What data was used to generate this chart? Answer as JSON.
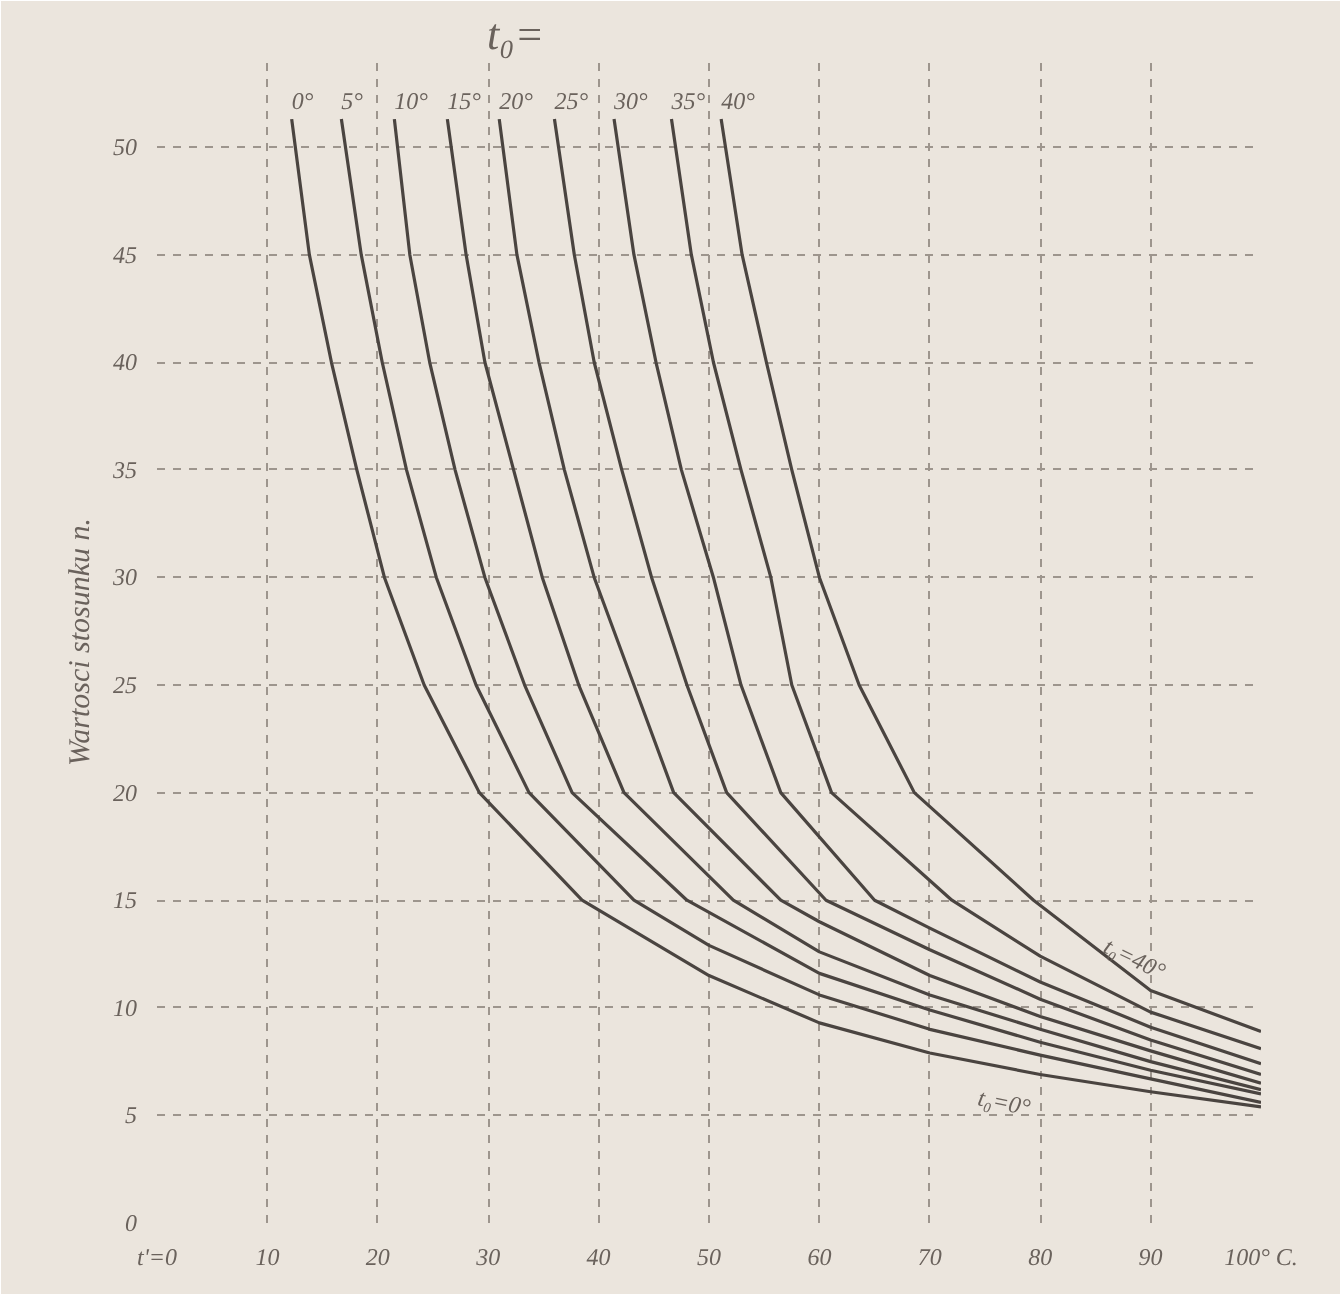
{
  "chart_data": {
    "type": "line",
    "title": "t₀=",
    "ylabel": "Wartosci stosunku n.",
    "xlim": [
      0,
      100
    ],
    "ylim": [
      0,
      54
    ],
    "xticks": [
      {
        "value": 0,
        "label": "t'=0"
      },
      10,
      20,
      30,
      40,
      50,
      60,
      70,
      80,
      90,
      {
        "value": 100,
        "label": "100° C."
      }
    ],
    "yticks": [
      0,
      5,
      10,
      15,
      20,
      25,
      30,
      35,
      40,
      45,
      50
    ],
    "grid": true,
    "legend": false,
    "annotations": [
      "t₀=40°",
      "t₀=0°"
    ],
    "series": [
      {
        "name": "0°",
        "color": "#4a4440",
        "x": [
          12.2,
          13.8,
          15.8,
          18.1,
          20.6,
          24.2,
          29.2,
          38.5,
          50,
          60,
          70,
          80,
          90,
          100
        ],
        "values": [
          51.3,
          45,
          40,
          35,
          30,
          25,
          20,
          15,
          11.5,
          9.3,
          7.9,
          6.9,
          6.1,
          5.4
        ]
      },
      {
        "name": "5°",
        "color": "#4a4440",
        "x": [
          16.7,
          18.5,
          20.4,
          22.6,
          25.3,
          28.9,
          33.7,
          43.2,
          50,
          60,
          70,
          80,
          90,
          100
        ],
        "values": [
          51.3,
          45,
          40,
          35,
          30,
          25,
          20,
          15,
          12.9,
          10.6,
          9.0,
          7.8,
          6.7,
          5.6
        ]
      },
      {
        "name": "10°",
        "color": "#4a4440",
        "x": [
          21.5,
          22.9,
          24.7,
          27,
          29.7,
          33.3,
          37.6,
          48,
          60,
          70,
          80,
          90,
          100
        ],
        "values": [
          51.3,
          45,
          40,
          35,
          30,
          25,
          20,
          15,
          11.6,
          9.9,
          8.4,
          7.1,
          6.0
        ]
      },
      {
        "name": "15°",
        "color": "#4a4440",
        "x": [
          26.3,
          28,
          29.7,
          32.3,
          34.9,
          38.2,
          42.3,
          52.2,
          60,
          70,
          80,
          90,
          100
        ],
        "values": [
          51.3,
          45,
          40,
          35,
          30,
          25,
          20,
          15,
          12.6,
          10.6,
          9.0,
          7.5,
          6.2
        ]
      },
      {
        "name": "20°",
        "color": "#4a4440",
        "x": [
          31,
          32.6,
          34.6,
          36.9,
          39.6,
          43.2,
          46.8,
          56.5,
          60,
          70,
          80,
          90,
          100
        ],
        "values": [
          51.3,
          45,
          40,
          35,
          30,
          25,
          20,
          15,
          14.0,
          11.5,
          9.6,
          8.0,
          6.5
        ]
      },
      {
        "name": "25°",
        "color": "#4a4440",
        "x": [
          36,
          37.8,
          39.6,
          42.1,
          44.8,
          48,
          51.6,
          60.6,
          70,
          80,
          90,
          100
        ],
        "values": [
          51.3,
          45,
          40,
          35,
          30,
          25,
          20,
          15,
          12.7,
          10.4,
          8.5,
          6.9
        ]
      },
      {
        "name": "30°",
        "color": "#4a4440",
        "x": [
          41.4,
          43.2,
          45.2,
          47.5,
          50.4,
          52.9,
          56.5,
          65,
          70,
          80,
          90,
          100
        ],
        "values": [
          51.3,
          45,
          40,
          35,
          30,
          25,
          20,
          15,
          13.7,
          11.2,
          9.1,
          7.4
        ]
      },
      {
        "name": "35°",
        "color": "#4a4440",
        "x": [
          46.6,
          48.4,
          50.4,
          52.9,
          55.6,
          57.5,
          61.1,
          72,
          80,
          90,
          100
        ],
        "values": [
          51.3,
          45,
          40,
          35,
          30,
          25,
          20,
          15,
          12.4,
          9.8,
          8.1
        ]
      },
      {
        "name": "40°",
        "color": "#4a4440",
        "x": [
          51.1,
          53,
          55.2,
          57.5,
          60,
          63.6,
          68.6,
          79.4,
          90,
          100
        ],
        "values": [
          51.3,
          45,
          40,
          35,
          30,
          25,
          20,
          15,
          10.8,
          8.9
        ]
      }
    ]
  }
}
